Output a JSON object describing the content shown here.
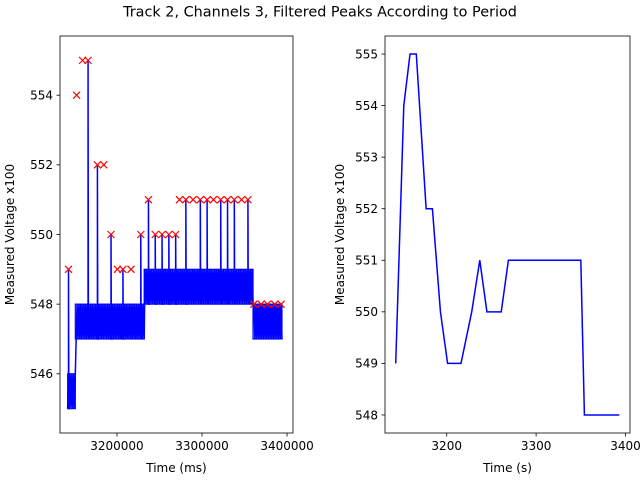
{
  "figure_title": "Track 2, Channels 3, Filtered Peaks According to Period",
  "chart_data": [
    {
      "type": "line",
      "name": "raw-signal-with-peaks",
      "title": "",
      "xlabel": "Time (ms)",
      "ylabel": "Measured Voltage x100",
      "xlim": [
        3133000,
        3407000
      ],
      "ylim": [
        544.3,
        555.7
      ],
      "xticks": [
        3200000,
        3300000,
        3400000
      ],
      "xtick_labels": [
        "3200000",
        "3300000",
        "3400000"
      ],
      "yticks": [
        546,
        548,
        550,
        552,
        554
      ],
      "ytick_labels": [
        "546",
        "548",
        "550",
        "552",
        "554"
      ],
      "baseline_segments": [
        {
          "start": 3142000,
          "end": 3151000,
          "baseline": 545
        },
        {
          "start": 3151000,
          "end": 3205000,
          "baseline": 547
        },
        {
          "start": 3205000,
          "end": 3232000,
          "baseline": 547
        },
        {
          "start": 3232000,
          "end": 3360000,
          "baseline": 548
        },
        {
          "start": 3360000,
          "end": 3394000,
          "baseline": 547
        }
      ],
      "series": [
        {
          "name": "peaks",
          "color": "#ff0000",
          "marker": "x",
          "x": [
            3143000,
            3152500,
            3159500,
            3166000,
            3177000,
            3184500,
            3193000,
            3200500,
            3207000,
            3216500,
            3228000,
            3237000,
            3245000,
            3253000,
            3261000,
            3269000,
            3273500,
            3281000,
            3289500,
            3298000,
            3306000,
            3313500,
            3322000,
            3330000,
            3338000,
            3346500,
            3354000,
            3361000,
            3369500,
            3377000,
            3385500,
            3393000
          ],
          "y": [
            549,
            554,
            555,
            555,
            552,
            552,
            550,
            549,
            549,
            549,
            550,
            551,
            550,
            550,
            550,
            550,
            551,
            551,
            551,
            551,
            551,
            551,
            551,
            551,
            551,
            551,
            551,
            548,
            548,
            548,
            548,
            548
          ]
        }
      ],
      "signal_color": "#0000ff"
    },
    {
      "type": "line",
      "name": "peak-envelope",
      "title": "",
      "xlabel": "Time (s)",
      "ylabel": "Measured Voltage x100",
      "xlim": [
        3131,
        3405
      ],
      "ylim": [
        547.65,
        555.35
      ],
      "xticks": [
        3200,
        3300,
        3400
      ],
      "xtick_labels": [
        "3200",
        "3300",
        "3400"
      ],
      "yticks": [
        548,
        549,
        550,
        551,
        552,
        553,
        554,
        555
      ],
      "ytick_labels": [
        "548",
        "549",
        "550",
        "551",
        "552",
        "553",
        "554",
        "555"
      ],
      "series": [
        {
          "name": "filtered peaks",
          "color": "#0000ff",
          "x": [
            3143,
            3152,
            3159,
            3166,
            3177,
            3184,
            3193,
            3201,
            3207,
            3216,
            3228,
            3237,
            3245,
            3261,
            3269,
            3282,
            3300,
            3330,
            3350,
            3354,
            3361,
            3377,
            3393
          ],
          "y": [
            549,
            554,
            555,
            555,
            552,
            552,
            550,
            549,
            549,
            549,
            550,
            551,
            550,
            550,
            551,
            551,
            551,
            551,
            551,
            548,
            548,
            548,
            548
          ]
        }
      ]
    }
  ]
}
